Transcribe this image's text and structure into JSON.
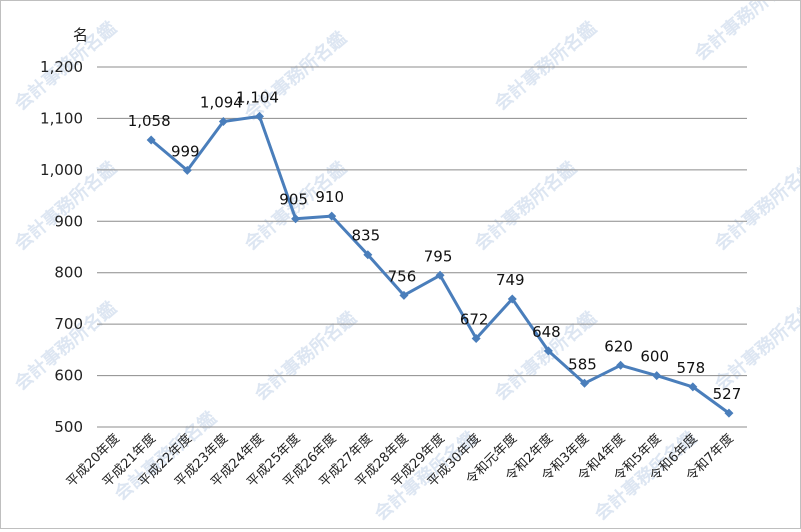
{
  "chart_data": {
    "type": "line",
    "title": "",
    "xlabel": "",
    "ylabel": "",
    "unit_label": "名",
    "ylim": [
      500,
      1200
    ],
    "yticks": [
      500,
      600,
      700,
      800,
      900,
      1000,
      1100,
      1200
    ],
    "ytick_labels": [
      "500",
      "600",
      "700",
      "800",
      "900",
      "1,000",
      "1,100",
      "1,200"
    ],
    "grid": true,
    "legend": "none",
    "line_color": "#4a7ebb",
    "categories": [
      "平成20年度",
      "平成21年度",
      "平成22年度",
      "平成23年度",
      "平成24年度",
      "平成25年度",
      "平成26年度",
      "平成27年度",
      "平成28年度",
      "平成29年度",
      "平成30年度",
      "令和元年度",
      "令和2年度",
      "令和3年度",
      "令和4年度",
      "令和5年度",
      "令和6年度",
      "令和7年度"
    ],
    "series": [
      {
        "values": [
          null,
          1058,
          999,
          1094,
          1104,
          905,
          910,
          835,
          756,
          795,
          672,
          749,
          648,
          585,
          620,
          600,
          578,
          527
        ],
        "data_labels": [
          "",
          "1,058",
          "999",
          "1,094",
          "1,104",
          "905",
          "910",
          "835",
          "756",
          "795",
          "672",
          "749",
          "648",
          "585",
          "620",
          "600",
          "578",
          "527"
        ]
      }
    ]
  },
  "watermark": "会計事務所名鑑"
}
